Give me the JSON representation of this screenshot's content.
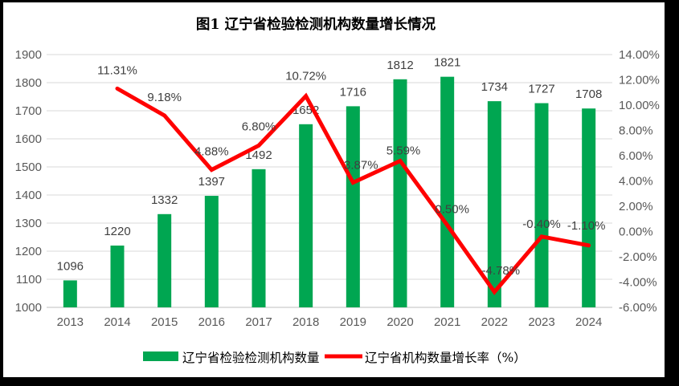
{
  "title": "图1 辽宁省检验检测机构数量增长情况",
  "colors": {
    "bar_green": "#00A651",
    "line_red": "#FF0000",
    "gridline": "#D9D9D9",
    "axis_line": "#BFBFBF",
    "tick_text": "#595959",
    "label_text": "#404040",
    "title_text": "#000000",
    "frame": "#000000",
    "background": "#FFFFFF"
  },
  "legend": {
    "items": [
      {
        "label": "辽宁省检验检测机构数量",
        "swatch": "bar-swatch"
      },
      {
        "label": "辽宁省机构数量增长率（%）",
        "swatch": "line-swatch"
      }
    ],
    "position": "bottom"
  },
  "chart_data": {
    "type": "bar",
    "title": "图1 辽宁省检验检测机构数量增长情况",
    "categories": [
      "2013",
      "2014",
      "2015",
      "2016",
      "2017",
      "2018",
      "2019",
      "2020",
      "2021",
      "2022",
      "2023",
      "2024"
    ],
    "series": [
      {
        "name": "辽宁省检验检测机构数量",
        "type": "bar",
        "axis": "left",
        "color": "#00A651",
        "values": [
          1096,
          1220,
          1332,
          1397,
          1492,
          1652,
          1716,
          1812,
          1821,
          1734,
          1727,
          1708
        ],
        "labels": [
          "1096",
          "1220",
          "1332",
          "1397",
          "1492",
          "1652",
          "1716",
          "1812",
          "1821",
          "1734",
          "1727",
          "1708"
        ]
      },
      {
        "name": "辽宁省机构数量增长率（%）",
        "type": "line",
        "axis": "right",
        "color": "#FF0000",
        "values": [
          null,
          11.31,
          9.18,
          4.88,
          6.8,
          10.72,
          3.87,
          5.59,
          0.5,
          -4.78,
          -0.4,
          -1.1
        ],
        "labels": [
          null,
          "11.31%",
          "9.18%",
          "4.88%",
          "6.80%",
          "10.72%",
          "3.87%",
          "5.59%",
          "0.50%",
          "-4.78%",
          "-0.40%",
          "-1.10%"
        ]
      }
    ],
    "left_axis": {
      "min": 1000,
      "max": 1900,
      "step": 100,
      "ticks": [
        "1900",
        "1800",
        "1700",
        "1600",
        "1500",
        "1400",
        "1300",
        "1200",
        "1100",
        "1000"
      ]
    },
    "right_axis": {
      "min": -6,
      "max": 14,
      "step": 2,
      "ticks": [
        "14.00%",
        "12.00%",
        "10.00%",
        "8.00%",
        "6.00%",
        "4.00%",
        "2.00%",
        "0.00%",
        "-2.00%",
        "-4.00%",
        "-6.00%"
      ]
    },
    "grid": true,
    "legend_position": "bottom",
    "xlabel": "",
    "ylabel": ""
  }
}
